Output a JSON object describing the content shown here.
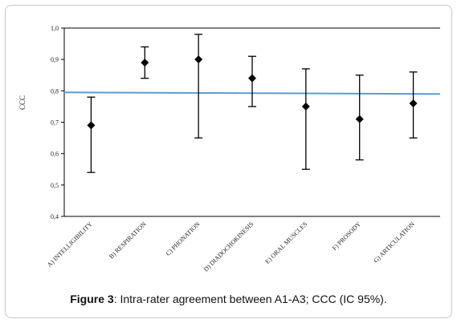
{
  "caption": {
    "label": "Figure 3",
    "text": ": Intra-rater agreement between A1-A3; CCC (IC 95%)."
  },
  "chart_data": {
    "type": "scatter",
    "ylabel": "CCC",
    "ylim": [
      0.4,
      1.0
    ],
    "yticks": [
      "0,4",
      "0,5",
      "0,6",
      "0,7",
      "0,8",
      "0,9",
      "1,0"
    ],
    "categories": [
      "A) INTELLIGIBILITY",
      "B) RESPIRATION",
      "C) PHONATION",
      "D) DIADOCHOKINESIS",
      "E) ORAL MUSCLES",
      "F) PROSODY",
      "G) ARTICULATION"
    ],
    "series": [
      {
        "values": [
          0.69,
          0.89,
          0.9,
          0.84,
          0.75,
          0.71,
          0.76
        ],
        "lower": [
          0.54,
          0.84,
          0.65,
          0.75,
          0.55,
          0.58,
          0.65
        ],
        "upper": [
          0.78,
          0.94,
          0.98,
          0.91,
          0.87,
          0.85,
          0.86
        ]
      }
    ],
    "reference_line": {
      "y_start": 0.795,
      "y_end": 0.79,
      "color": "#5b9bd5"
    },
    "marker": "diamond",
    "grid": false,
    "legend": "none"
  }
}
